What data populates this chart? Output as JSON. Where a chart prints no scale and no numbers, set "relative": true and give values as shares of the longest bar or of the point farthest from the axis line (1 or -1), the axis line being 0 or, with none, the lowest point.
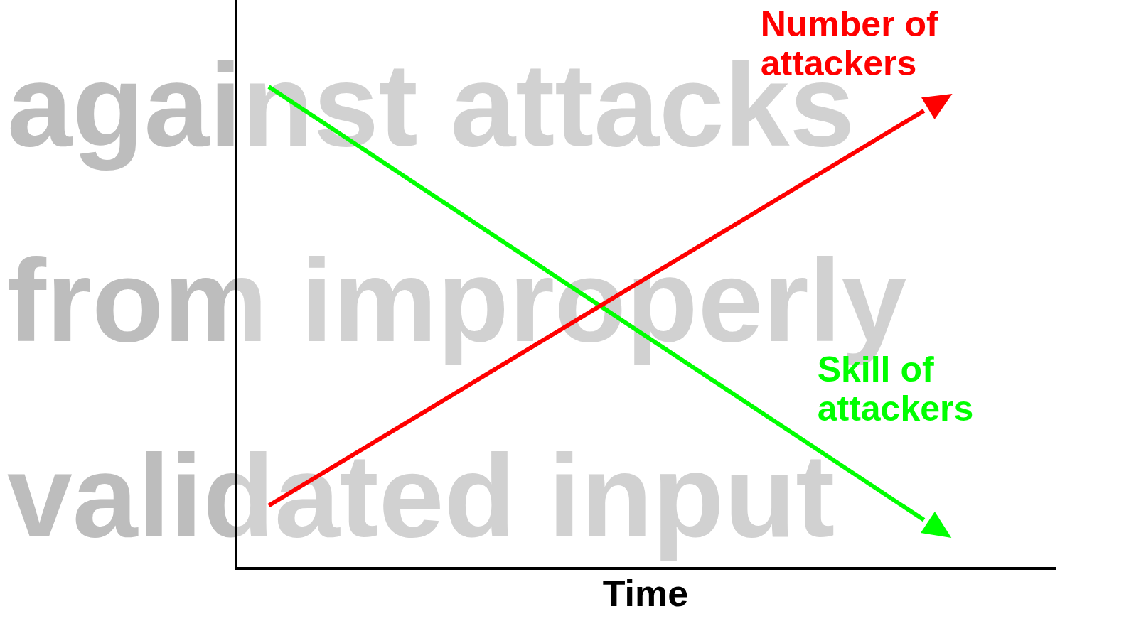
{
  "chart_data": {
    "type": "line",
    "relative": true,
    "xlabel": "Time",
    "annotations": [
      "against attacks from improperly validated input"
    ],
    "categories": [
      null,
      null
    ],
    "series": [
      {
        "name": "Number of attackers",
        "color": "#ff0000",
        "values": [
          0.13,
          0.95
        ]
      },
      {
        "name": "Skill of attackers",
        "color": "#00ff00",
        "values": [
          1,
          0.1
        ]
      }
    ],
    "grid": false,
    "legend": false,
    "marker": "none",
    "line_style": "solid"
  }
}
